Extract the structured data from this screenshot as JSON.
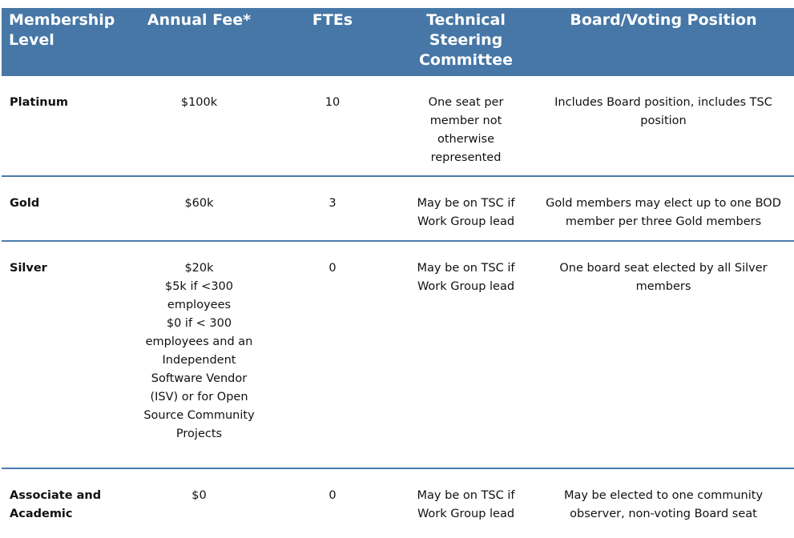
{
  "headers": [
    "Membership Level",
    "Annual Fee*",
    "FTEs",
    "Technical Steering Committee",
    "Board/Voting Position"
  ],
  "rows": [
    {
      "level": "Platinum",
      "fee": [
        "$100k"
      ],
      "ftes": "10",
      "tsc": "One seat per member not otherwise represented",
      "board": "Includes Board position, includes TSC position"
    },
    {
      "level": "Gold",
      "fee": [
        "$60k"
      ],
      "ftes": "3",
      "tsc": "May be on TSC if Work Group lead",
      "board": "Gold members may elect up to one BOD member per three Gold members"
    },
    {
      "level": "Silver",
      "fee": [
        "$20k",
        "$5k if <300 employees",
        "$0 if < 300 employees and an Independent Software Vendor (ISV) or for Open Source Community Projects"
      ],
      "ftes": "0",
      "tsc": "May be on TSC if Work Group lead",
      "board": "One board seat elected by all Silver members"
    },
    {
      "level": "Associate and Academic",
      "fee": [
        "$0"
      ],
      "ftes": "0",
      "tsc": "May be on TSC if Work Group lead",
      "board": "May be elected to one community observer, non-voting Board seat"
    }
  ],
  "colors": {
    "header_bg": "#4677a6",
    "header_text": "#ffffff",
    "row_border": "#4a7aab"
  }
}
